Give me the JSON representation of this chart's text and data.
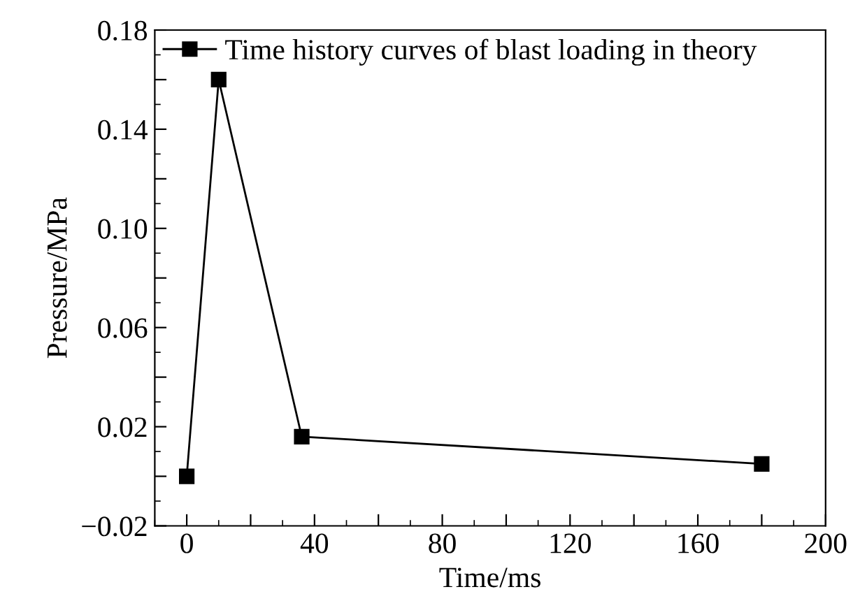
{
  "chart_data": {
    "type": "line",
    "xlabel": "Time/ms",
    "ylabel": "Pressure/MPa",
    "x": [
      0,
      10,
      36,
      180
    ],
    "series": [
      {
        "name": "Time history curves of blast loading in theory",
        "color": "#000000",
        "values": [
          0,
          0.16,
          0.016,
          0.005
        ]
      }
    ],
    "marker": "square",
    "line_style": "solid",
    "legend": "top left",
    "grid": false,
    "xlim": [
      -10,
      200
    ],
    "ylim": [
      -0.02,
      0.18
    ],
    "xticks": [
      0,
      {
        "value": 20,
        "label": null
      },
      40,
      {
        "value": 60,
        "label": null
      },
      80,
      {
        "value": 100,
        "label": null
      },
      120,
      {
        "value": 140,
        "label": null
      },
      160,
      {
        "value": 180,
        "label": null
      },
      200
    ],
    "yticks": [
      {
        "value": -0.02,
        "label": "−0.02"
      },
      {
        "value": 0,
        "label": null
      },
      0.02,
      {
        "value": 0.04,
        "label": null
      },
      0.06,
      {
        "value": 0.08,
        "label": null
      },
      {
        "value": 0.1,
        "label": "0.10"
      },
      {
        "value": 0.12,
        "label": null
      },
      0.14,
      {
        "value": 0.16,
        "label": null
      },
      0.18
    ]
  }
}
